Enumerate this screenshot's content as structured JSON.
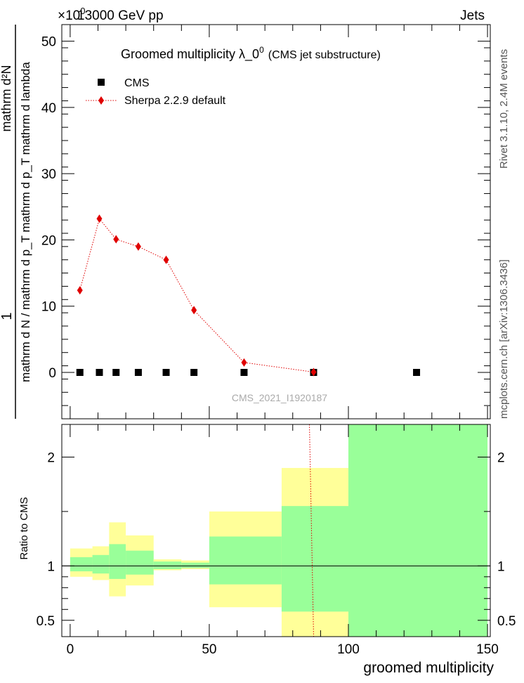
{
  "header": {
    "beam": "13000 GeV pp",
    "category": "Jets",
    "exponent": "×10^0"
  },
  "side_labels": {
    "rivet": "Rivet 3.1.10,  2.4M events",
    "mcplots": "mcplots.cern.ch [arXiv:1306.3436]"
  },
  "chart_data": [
    {
      "type": "scatter",
      "title": "Groomed multiplicity  λ_0",
      "title_superscript": "0",
      "title_suffix": "(CMS jet substructure)",
      "analysis_label": "CMS_2021_I1920187",
      "ylabel_numerator": "1",
      "ylabel_denominator": "mathrm d N / mathrm d p_T mathrm d p_T mathrm d lambda",
      "ylabel_numerator_expr": "mathrm d²N",
      "ylim": [
        -7,
        52.5
      ],
      "y_ticks": [
        0,
        10,
        20,
        30,
        40,
        50
      ],
      "legend_position": "top-left",
      "series": [
        {
          "name": "CMS",
          "marker": "square",
          "color": "#000000",
          "x": [
            3.5,
            10.5,
            16.5,
            24.5,
            34.5,
            44.5,
            62.5,
            87.5,
            124.5
          ],
          "y": [
            0,
            0,
            0,
            0,
            0,
            0,
            0,
            0,
            0
          ]
        },
        {
          "name": "Sherpa 2.2.9 default",
          "marker": "diamond",
          "line": "dotted",
          "color": "#e00000",
          "x": [
            3.5,
            10.5,
            16.5,
            24.5,
            34.5,
            44.5,
            62.5,
            87.5
          ],
          "y": [
            12.4,
            23.2,
            20.1,
            19.0,
            17.0,
            9.4,
            1.5,
            0.05
          ]
        }
      ]
    },
    {
      "type": "area",
      "ylabel": "Ratio to CMS",
      "xlabel": "groomed multiplicity",
      "xlim": [
        -3,
        151
      ],
      "x_ticks": [
        0,
        50,
        100,
        150
      ],
      "ylim": [
        0.35,
        2.3
      ],
      "y_ticks": [
        0.5,
        1,
        2
      ],
      "reference_line": 1,
      "bands": [
        {
          "x0": 0,
          "x1": 8,
          "inner": [
            0.95,
            1.08
          ],
          "outer": [
            0.9,
            1.16
          ]
        },
        {
          "x0": 8,
          "x1": 14,
          "inner": [
            0.93,
            1.1
          ],
          "outer": [
            0.87,
            1.18
          ]
        },
        {
          "x0": 14,
          "x1": 20,
          "inner": [
            0.88,
            1.2
          ],
          "outer": [
            0.72,
            1.4
          ]
        },
        {
          "x0": 20,
          "x1": 30,
          "inner": [
            0.92,
            1.14
          ],
          "outer": [
            0.82,
            1.28
          ]
        },
        {
          "x0": 30,
          "x1": 40,
          "inner": [
            0.97,
            1.04
          ],
          "outer": [
            0.96,
            1.06
          ]
        },
        {
          "x0": 40,
          "x1": 50,
          "inner": [
            0.98,
            1.03
          ],
          "outer": [
            0.97,
            1.05
          ]
        },
        {
          "x0": 50,
          "x1": 76,
          "inner": [
            0.83,
            1.27
          ],
          "outer": [
            0.62,
            1.5
          ]
        },
        {
          "x0": 76,
          "x1": 100,
          "inner": [
            0.58,
            1.55
          ],
          "outer": [
            0.35,
            1.9
          ]
        },
        {
          "x0": 100,
          "x1": 150,
          "inner": [
            0.35,
            2.3
          ],
          "outer": [
            0.35,
            2.3
          ]
        }
      ],
      "ratio_line": {
        "name": "Sherpa 2.2.9 default",
        "color": "#e00000",
        "x": [
          86,
          87.5
        ],
        "y": [
          2.3,
          0.35
        ]
      }
    }
  ],
  "colors": {
    "inner_band": "#99ff99",
    "outer_band": "#ffff99"
  }
}
